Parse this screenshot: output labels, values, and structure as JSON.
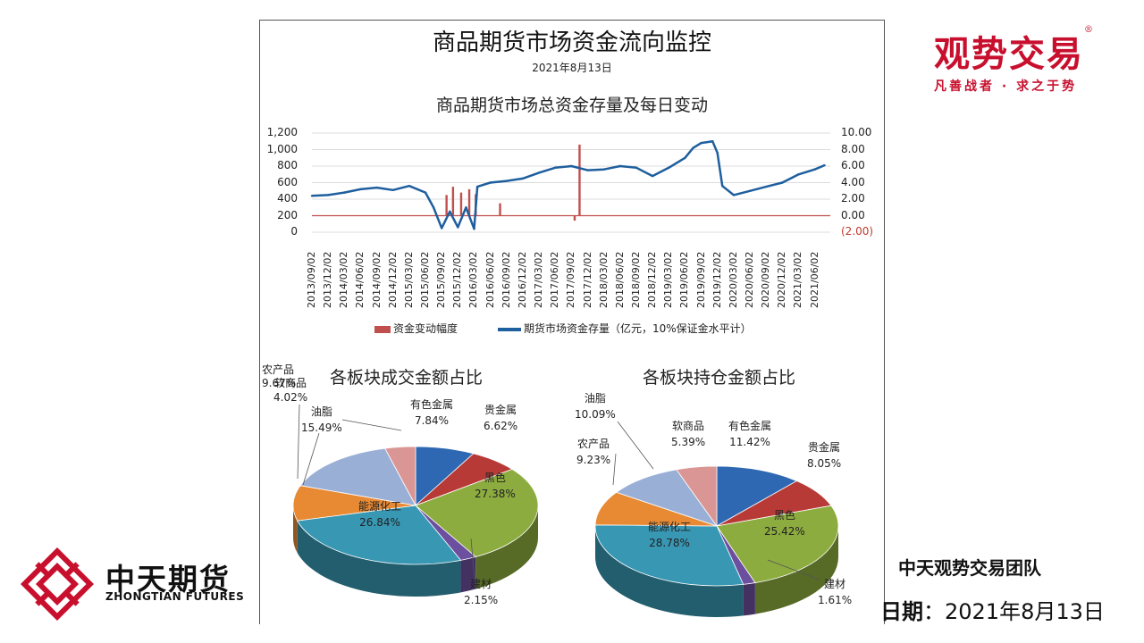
{
  "header": {
    "title": "商品期货市场资金流向监控",
    "date": "2021年8月13日"
  },
  "brand_right": {
    "name": "观势交易",
    "slogan": "凡善战者 · 求之于势",
    "mark": "®"
  },
  "brand_left": {
    "name": "中天期货",
    "english": "ZHONGTIAN FUTURES"
  },
  "footer": {
    "team": "中天观势交易团队",
    "date_label": "日期",
    "date_sep": "：",
    "date_value": "2021年8月13日"
  },
  "colors": {
    "bar": "#c0504d",
    "line": "#1f5f9e",
    "brand": "#c8102e"
  },
  "chart_data": [
    {
      "type": "line",
      "title": "商品期货市场总资金存量及每日变动",
      "left_axis": {
        "ylim": [
          0,
          1200
        ],
        "ticks": [
          "0",
          "200",
          "400",
          "600",
          "800",
          "1,000",
          "1,200"
        ]
      },
      "right_axis": {
        "ylim": [
          -2,
          10
        ],
        "ticks": [
          "(2.00)",
          "0.00",
          "2.00",
          "4.00",
          "6.00",
          "8.00",
          "10.00"
        ]
      },
      "x_ticks": [
        "2013/09/02",
        "2013/12/02",
        "2014/03/02",
        "2014/06/02",
        "2014/09/02",
        "2014/12/02",
        "2015/03/02",
        "2015/06/02",
        "2015/09/02",
        "2015/12/02",
        "2016/03/02",
        "2016/06/02",
        "2016/09/02",
        "2016/12/02",
        "2017/03/02",
        "2017/06/02",
        "2017/09/02",
        "2017/12/02",
        "2018/03/02",
        "2018/06/02",
        "2018/09/02",
        "2018/12/02",
        "2019/03/02",
        "2019/06/02",
        "2019/09/02",
        "2019/12/02",
        "2020/03/02",
        "2020/06/02",
        "2020/09/02",
        "2020/12/02",
        "2021/03/02",
        "2021/06/02"
      ],
      "legend": [
        "资金变动幅度",
        "期货市场资金存量（亿元，10%保证金水平计）"
      ],
      "legend_position": "bottom",
      "series": [
        {
          "name": "期货市场资金存量（亿元，10%保证金水平计）",
          "axis": "left",
          "x": [
            0,
            1,
            2,
            3,
            4,
            5,
            6,
            7,
            7.5,
            8,
            8.5,
            9,
            9.5,
            10,
            10.2,
            11,
            12,
            13,
            14,
            15,
            16,
            17,
            18,
            19,
            20,
            21,
            22,
            23,
            23.5,
            24,
            24.7,
            25,
            25.3,
            26,
            27,
            28,
            29,
            30,
            31,
            31.6
          ],
          "values": [
            440,
            450,
            480,
            520,
            540,
            510,
            560,
            480,
            300,
            50,
            250,
            60,
            300,
            40,
            550,
            600,
            620,
            650,
            720,
            780,
            800,
            750,
            760,
            800,
            780,
            680,
            780,
            900,
            1020,
            1080,
            1100,
            960,
            560,
            450,
            500,
            550,
            600,
            700,
            760,
            810
          ]
        },
        {
          "name": "资金变动幅度",
          "axis": "right",
          "x": [
            8.3,
            8.7,
            9.2,
            9.7,
            10.1,
            11.6,
            16.2,
            16.5
          ],
          "values": [
            2.5,
            3.5,
            2.8,
            3.2,
            2.6,
            1.5,
            -0.6,
            8.6
          ]
        }
      ]
    },
    {
      "type": "pie",
      "title": "各板块成交金额占比",
      "categories": [
        "有色金属",
        "贵金属",
        "黑色",
        "建材",
        "能源化工",
        "农产品",
        "油脂",
        "软商品"
      ],
      "values": [
        7.84,
        6.62,
        27.38,
        2.15,
        26.84,
        9.67,
        15.49,
        4.02
      ],
      "labels": [
        "7.84%",
        "6.62%",
        "27.38%",
        "2.15%",
        "26.84%",
        "9.67%",
        "15.49%",
        "4.02%"
      ]
    },
    {
      "type": "pie",
      "title": "各板块持仓金额占比",
      "categories": [
        "有色金属",
        "贵金属",
        "黑色",
        "建材",
        "能源化工",
        "农产品",
        "油脂",
        "软商品"
      ],
      "values": [
        11.42,
        8.05,
        25.42,
        1.61,
        28.78,
        9.23,
        10.09,
        5.39
      ],
      "labels": [
        "11.42%",
        "8.05%",
        "25.42%",
        "1.61%",
        "28.78%",
        "9.23%",
        "10.09%",
        "5.39%"
      ]
    }
  ]
}
